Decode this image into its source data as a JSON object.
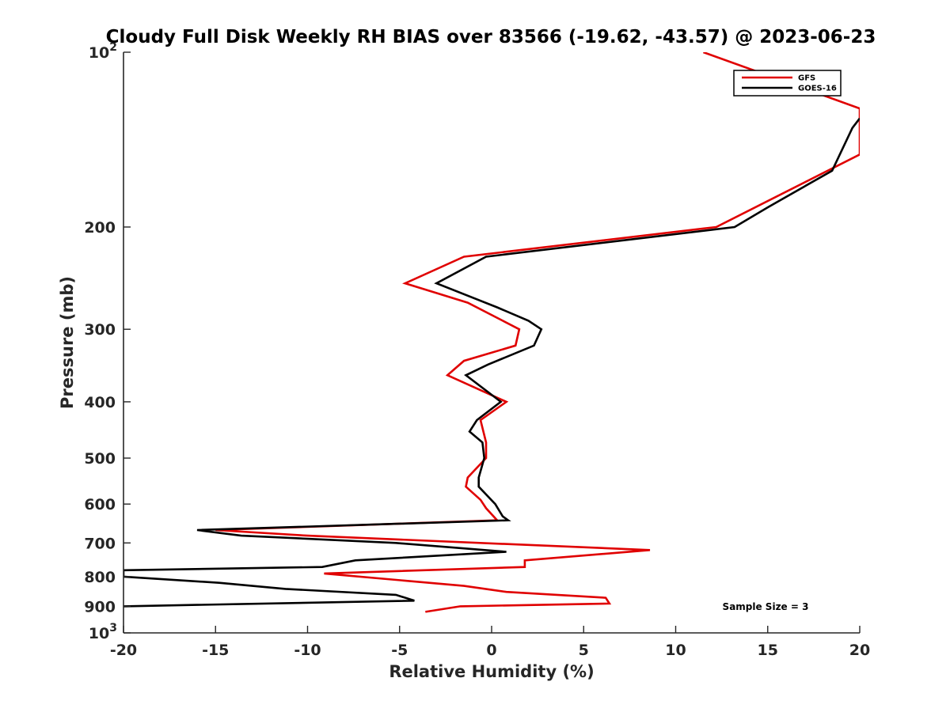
{
  "chart_data": {
    "type": "line",
    "title": "Cloudy Full Disk Weekly RH BIAS over 83566 (-19.62, -43.57) @ 2023-06-23",
    "xlabel": "Relative Humidity (%)",
    "ylabel": "Pressure (mb)",
    "xlim": [
      -20,
      20
    ],
    "ylim": [
      100,
      1000
    ],
    "y_scale": "log",
    "y_reversed": true,
    "grid": false,
    "legend_position": "top-right",
    "x_ticks": [
      -20,
      -15,
      -10,
      -5,
      0,
      5,
      10,
      15,
      20
    ],
    "x_tick_labels": [
      "-20",
      "-15",
      "-10",
      "-5",
      "0",
      "5",
      "10",
      "15",
      "20"
    ],
    "y_ticks": [
      100,
      200,
      300,
      400,
      500,
      600,
      700,
      800,
      900,
      1000
    ],
    "y_tick_labels": [
      {
        "base": "10",
        "exp": "2"
      },
      {
        "base": "200",
        "exp": ""
      },
      {
        "base": "300",
        "exp": ""
      },
      {
        "base": "400",
        "exp": ""
      },
      {
        "base": "500",
        "exp": ""
      },
      {
        "base": "600",
        "exp": ""
      },
      {
        "base": "700",
        "exp": ""
      },
      {
        "base": "800",
        "exp": ""
      },
      {
        "base": "900",
        "exp": ""
      },
      {
        "base": "10",
        "exp": "3"
      }
    ],
    "annotation": "Sample Size = 3",
    "series": [
      {
        "name": "GFS",
        "color": "#e00000",
        "points": [
          [
            11.5,
            100
          ],
          [
            20.0,
            125
          ],
          [
            20.0,
            150
          ],
          [
            12.2,
            200
          ],
          [
            -1.5,
            225
          ],
          [
            -4.7,
            250
          ],
          [
            -1.3,
            270
          ],
          [
            0.6,
            290
          ],
          [
            1.5,
            300
          ],
          [
            1.3,
            320
          ],
          [
            -1.5,
            340
          ],
          [
            -2.4,
            360
          ],
          [
            0.8,
            400
          ],
          [
            -0.6,
            430
          ],
          [
            -0.3,
            470
          ],
          [
            -0.3,
            500
          ],
          [
            -1.3,
            540
          ],
          [
            -1.4,
            560
          ],
          [
            -0.6,
            590
          ],
          [
            -0.3,
            610
          ],
          [
            0.3,
            640
          ],
          [
            -15.0,
            665
          ],
          [
            -10.0,
            680
          ],
          [
            8.6,
            720
          ],
          [
            1.8,
            750
          ],
          [
            1.8,
            770
          ],
          [
            -9.1,
            790
          ],
          [
            -1.5,
            830
          ],
          [
            0.8,
            850
          ],
          [
            6.2,
            870
          ],
          [
            6.4,
            890
          ],
          [
            -1.7,
            900
          ],
          [
            -3.6,
            920
          ]
        ]
      },
      {
        "name": "GOES-16",
        "color": "#000000",
        "points": [
          [
            20.0,
            130
          ],
          [
            19.6,
            135
          ],
          [
            18.5,
            160
          ],
          [
            15.0,
            185
          ],
          [
            13.2,
            200
          ],
          [
            -0.3,
            225
          ],
          [
            -3.0,
            250
          ],
          [
            0.3,
            275
          ],
          [
            2.0,
            290
          ],
          [
            2.7,
            300
          ],
          [
            2.3,
            320
          ],
          [
            -0.2,
            345
          ],
          [
            -1.4,
            360
          ],
          [
            0.5,
            400
          ],
          [
            -0.8,
            430
          ],
          [
            -1.2,
            450
          ],
          [
            -0.5,
            470
          ],
          [
            -0.4,
            500
          ],
          [
            -0.7,
            540
          ],
          [
            -0.7,
            560
          ],
          [
            0.2,
            600
          ],
          [
            0.6,
            630
          ],
          [
            0.9,
            640
          ],
          [
            -16.0,
            665
          ],
          [
            -13.6,
            680
          ],
          [
            -5.2,
            700
          ],
          [
            0.8,
            725
          ],
          [
            -7.4,
            750
          ],
          [
            -9.2,
            770
          ],
          [
            -20.0,
            780
          ],
          [
            -20.0,
            800
          ],
          [
            -14.8,
            820
          ],
          [
            -11.2,
            840
          ],
          [
            -5.2,
            860
          ],
          [
            -4.2,
            880
          ],
          [
            -20.0,
            900
          ]
        ]
      }
    ]
  }
}
